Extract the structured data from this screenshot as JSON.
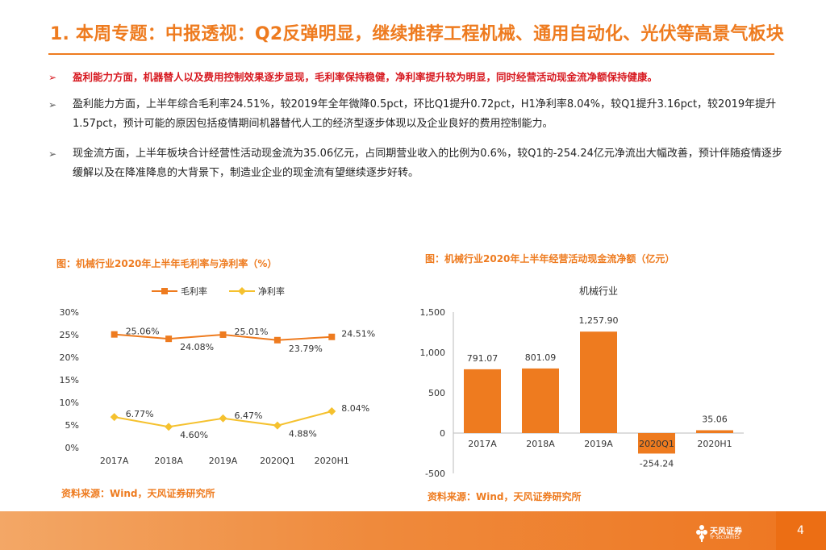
{
  "header": {
    "title": "1. 本周专题：中报透视：Q2反弹明显，继续推荐工程机械、通用自动化、光伏等高景气板块"
  },
  "bullets": [
    {
      "mark": "➢",
      "text": "盈利能力方面，机器替人以及费用控制效果逐步显现，毛利率保持稳健，净利率提升较为明显，同时经营活动现金流净额保持健康。"
    },
    {
      "mark": "➢",
      "text": "盈利能力方面，上半年综合毛利率24.51%，较2019年全年微降0.5pct，环比Q1提升0.72pct，H1净利率8.04%，较Q1提升3.16pct，较2019年提升1.57pct，预计可能的原因包括疫情期间机器替代人工的经济型逐步体现以及企业良好的费用控制能力。"
    },
    {
      "mark": "➢",
      "text": "现金流方面，上半年板块合计经营性活动现金流为35.06亿元，占同期营业收入的比例为0.6%，较Q1的-254.24亿元净流出大幅改善，预计伴随疫情逐步缓解以及在降准降息的大背景下，制造业企业的现金流有望继续逐步好转。"
    }
  ],
  "charts": {
    "left": {
      "caption": "图：机械行业2020年上半年毛利率与净利率（%）",
      "source": "资料来源：Wind，天风证券研究所"
    },
    "right": {
      "caption": "图：机械行业2020年上半年经营活动现金流净额（亿元）",
      "source": "资料来源：Wind，天风证券研究所"
    }
  },
  "chart_data": [
    {
      "type": "line",
      "categories": [
        "2017A",
        "2018A",
        "2019A",
        "2020Q1",
        "2020H1"
      ],
      "series": [
        {
          "name": "毛利率",
          "values": [
            25.06,
            24.08,
            25.01,
            23.79,
            24.51
          ],
          "labels": [
            "25.06%",
            "24.08%",
            "25.01%",
            "23.79%",
            "24.51%"
          ],
          "color": "#ee7b1f"
        },
        {
          "name": "净利率",
          "values": [
            6.77,
            4.6,
            6.47,
            4.88,
            8.04
          ],
          "labels": [
            "6.77%",
            "4.60%",
            "6.47%",
            "4.88%",
            "8.04%"
          ],
          "color": "#f5c12e"
        }
      ],
      "ylim": [
        0,
        30
      ],
      "yticks": [
        0,
        5,
        10,
        15,
        20,
        25,
        30
      ],
      "ytick_labels": [
        "0%",
        "5%",
        "10%",
        "15%",
        "20%",
        "25%",
        "30%"
      ],
      "legend": "top",
      "grid": false
    },
    {
      "type": "bar",
      "title": "机械行业",
      "categories": [
        "2017A",
        "2018A",
        "2019A",
        "2020Q1",
        "2020H1"
      ],
      "values": [
        791.07,
        801.09,
        1257.9,
        -254.24,
        35.06
      ],
      "value_labels": [
        "791.07",
        "801.09",
        "1,257.90",
        "-254.24",
        "35.06"
      ],
      "ylim": [
        -500,
        1500
      ],
      "yticks": [
        -500,
        0,
        500,
        1000,
        1500
      ],
      "ytick_labels": [
        "-500",
        "0",
        "500",
        "1,000",
        "1,500"
      ],
      "color": "#ee7b1f",
      "grid": false
    }
  ],
  "footer": {
    "logo_text": "天风证券",
    "logo_sub": "TF SECURITIES",
    "page": "4"
  }
}
